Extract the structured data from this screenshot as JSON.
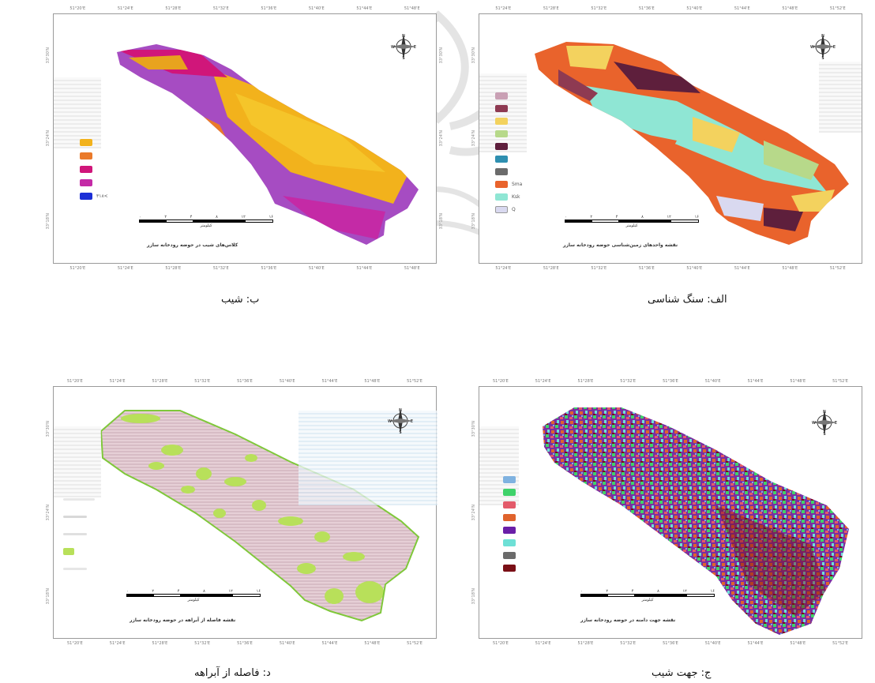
{
  "panels": [
    {
      "id": "slope",
      "title": "ب: شیب",
      "map_caption": "کلاس‌های شیب در حوضه رودخانه سازر",
      "scale_numbers": [
        "۰",
        "۲",
        "۴",
        "۸",
        "۱۲",
        "۱۶"
      ],
      "scale_unit": "کیلومتر",
      "compass_letters": {
        "n": "N",
        "s": "S",
        "e": "E",
        "w": "W"
      },
      "legend": [
        {
          "label": "",
          "color": "#f2b21c"
        },
        {
          "label": "",
          "color": "#ea7a2a"
        },
        {
          "label": "",
          "color": "#d0167a"
        },
        {
          "label": "",
          "color": "#c42aa6"
        },
        {
          "label": "۳۱۸<",
          "color": "#1c2fd6"
        }
      ]
    },
    {
      "id": "lithology",
      "title": "الف: سنگ شناسی",
      "map_caption": "نقشه واحدهای زمین‌شناسی حوضه رودخانه سازر",
      "scale_numbers": [
        "۰",
        "۲",
        "۴",
        "۸",
        "۱۲",
        "۱۶"
      ],
      "scale_unit": "کیلومتر",
      "compass_letters": {
        "n": "N",
        "s": "S",
        "e": "E",
        "w": "W"
      },
      "legend": [
        {
          "label": "",
          "color": "#c9a0b4"
        },
        {
          "label": "",
          "color": "#8e3a52"
        },
        {
          "label": "",
          "color": "#f3d25e"
        },
        {
          "label": "",
          "color": "#b7d98a"
        },
        {
          "label": "",
          "color": "#5e1f3c"
        },
        {
          "label": "",
          "color": "#2e8fb0"
        },
        {
          "label": "",
          "color": "#6b6b6b"
        },
        {
          "label": "Sma",
          "color": "#e9632c"
        },
        {
          "label": "Ksk",
          "color": "#8fe6d4"
        },
        {
          "label": "Q",
          "color": "#d9d9f0"
        }
      ]
    },
    {
      "id": "road",
      "title": "د: فاصله از آبراهه",
      "map_caption": "نقشه فاصله از آبراهه در حوضه رودخانه سازر",
      "scale_numbers": [
        "۰",
        "۲",
        "۴",
        "۸",
        "۱۲",
        "۱۶"
      ],
      "scale_unit": "کیلومتر",
      "compass_letters": {
        "n": "N",
        "s": "S",
        "e": "E",
        "w": "W"
      },
      "legend": [
        {
          "label": "",
          "color": "#e8e8e8"
        },
        {
          "label": "",
          "color": "#d8d8d8"
        },
        {
          "label": "",
          "color": "#e0e0e0"
        },
        {
          "label": "",
          "color": "#b8e05a"
        },
        {
          "label": "",
          "color": "#e6e6e6"
        }
      ]
    },
    {
      "id": "aspect",
      "title": "ج: جهت شیب",
      "map_caption": "نقشه جهت دامنه در حوضه رودخانه سازر",
      "scale_numbers": [
        "۰",
        "۲",
        "۴",
        "۸",
        "۱۲",
        "۱۶"
      ],
      "scale_unit": "کیلومتر",
      "compass_letters": {
        "n": "N",
        "s": "S",
        "e": "E",
        "w": "W"
      },
      "legend": [
        {
          "label": "",
          "color": "#7fb2e0"
        },
        {
          "label": "",
          "color": "#3fd26a"
        },
        {
          "label": "",
          "color": "#e35a6a"
        },
        {
          "label": "",
          "color": "#e0632c"
        },
        {
          "label": "",
          "color": "#6a1fa8"
        },
        {
          "label": "",
          "color": "#6ee0d6"
        },
        {
          "label": "",
          "color": "#6b6b6b"
        },
        {
          "label": "",
          "color": "#7a0f16"
        }
      ]
    }
  ],
  "axis_ticks_top": [
    "51°20'E",
    "51°24'E",
    "51°28'E",
    "51°32'E",
    "51°36'E",
    "51°40'E",
    "51°44'E",
    "51°48'E",
    "51°52'E"
  ],
  "axis_ticks_side": [
    "33°30'N",
    "33°24'N",
    "33°18'N"
  ]
}
